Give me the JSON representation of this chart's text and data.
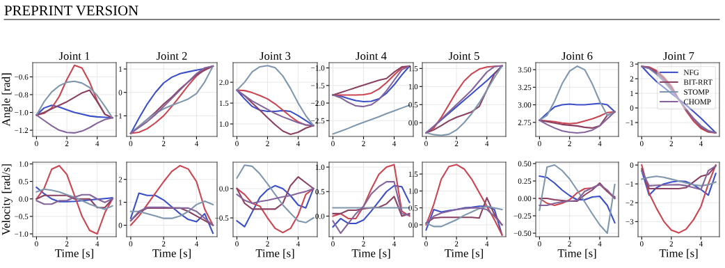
{
  "chart_data": [
    {
      "type": "line",
      "title": "Joint 1",
      "ylabel": "Angle [rad]",
      "annotations": [
        "PREPRINT VERSION"
      ],
      "grid": true,
      "x": [
        0,
        0.5,
        1,
        1.5,
        2,
        2.5,
        3,
        3.5,
        4,
        4.5,
        5
      ],
      "xlim": [
        -0.25,
        5.25
      ],
      "xticks": [
        0,
        2,
        4
      ],
      "ylim": [
        -1.27,
        -0.44
      ],
      "yticks": [
        -1.2,
        {
          "value": -1,
          "label": "−1.0"
        },
        -0.8,
        -0.6
      ],
      "series": [
        {
          "color": "#3a4fc9",
          "values": [
            -1.03,
            -0.95,
            -0.92,
            -0.94,
            -0.97,
            -1.0,
            -1.02,
            -1.04,
            -1.05,
            -1.055,
            -1.06
          ]
        },
        {
          "color": "#cc4450",
          "values": [
            -1.03,
            -1.01,
            -0.95,
            -0.82,
            -0.63,
            -0.47,
            -0.5,
            -0.66,
            -0.87,
            -1.02,
            -1.06
          ]
        },
        {
          "color": "#8a4060",
          "values": [
            -1.03,
            -1.0,
            -0.96,
            -0.92,
            -0.88,
            -0.83,
            -0.78,
            -0.75,
            -0.88,
            -1.02,
            -1.06
          ]
        },
        {
          "color": "#7f97ad",
          "values": [
            -1.03,
            -0.88,
            -0.77,
            -0.7,
            -0.66,
            -0.65,
            -0.67,
            -0.72,
            -0.81,
            -0.93,
            -1.06
          ]
        },
        {
          "color": "#84649a",
          "values": [
            -1.03,
            -1.09,
            -1.15,
            -1.2,
            -1.225,
            -1.23,
            -1.21,
            -1.17,
            -1.12,
            -1.08,
            -1.06
          ]
        }
      ]
    },
    {
      "type": "line",
      "title": "Joint 2",
      "grid": true,
      "x": [
        0,
        0.5,
        1,
        1.5,
        2,
        2.5,
        3,
        3.5,
        4,
        4.5,
        5
      ],
      "xlim": [
        -0.25,
        5.25
      ],
      "xticks": [
        0,
        2,
        4
      ],
      "ylim": [
        -1.88,
        1.27
      ],
      "yticks": [
        -1,
        0,
        1
      ],
      "series": [
        {
          "color": "#3a4fc9",
          "values": [
            -1.75,
            -1.1,
            -0.5,
            0.0,
            0.4,
            0.65,
            0.8,
            0.88,
            0.95,
            1.02,
            1.12
          ]
        },
        {
          "color": "#cc4450",
          "values": [
            -1.75,
            -1.7,
            -1.55,
            -1.3,
            -1.0,
            -0.6,
            -0.15,
            0.3,
            0.7,
            1.0,
            1.12
          ]
        },
        {
          "color": "#8a4060",
          "values": [
            -1.75,
            -1.45,
            -1.15,
            -0.85,
            -0.5,
            -0.2,
            0.15,
            0.45,
            0.75,
            0.95,
            1.12
          ]
        },
        {
          "color": "#7f97ad",
          "values": [
            -1.75,
            -1.45,
            -1.15,
            -0.9,
            -0.7,
            -0.55,
            -0.42,
            -0.28,
            -0.05,
            0.45,
            1.12
          ]
        },
        {
          "color": "#84649a",
          "values": [
            -1.75,
            -1.5,
            -1.25,
            -0.95,
            -0.6,
            -0.25,
            0.1,
            0.45,
            0.8,
            1.05,
            1.12
          ]
        }
      ]
    },
    {
      "type": "line",
      "title": "Joint 3",
      "grid": true,
      "x": [
        0,
        0.5,
        1,
        1.5,
        2,
        2.5,
        3,
        3.5,
        4,
        4.5,
        5
      ],
      "xlim": [
        -0.25,
        5.25
      ],
      "xticks": [
        0,
        2,
        4
      ],
      "ylim": [
        0.7,
        2.47
      ],
      "yticks": [
        {
          "value": 1,
          "label": "1.0"
        },
        1.5,
        {
          "value": 2,
          "label": "2.0"
        }
      ],
      "series": [
        {
          "color": "#3a4fc9",
          "values": [
            1.81,
            1.6,
            1.42,
            1.33,
            1.3,
            1.3,
            1.32,
            1.3,
            1.2,
            1.08,
            0.96
          ]
        },
        {
          "color": "#cc4450",
          "values": [
            1.81,
            1.8,
            1.75,
            1.68,
            1.6,
            1.48,
            1.33,
            1.18,
            1.05,
            0.97,
            0.96
          ]
        },
        {
          "color": "#8a4060",
          "values": [
            1.81,
            1.68,
            1.5,
            1.33,
            1.15,
            0.98,
            0.83,
            0.75,
            0.8,
            0.9,
            0.96
          ]
        },
        {
          "color": "#7f97ad",
          "values": [
            1.81,
            2.0,
            2.25,
            2.37,
            2.4,
            2.35,
            2.15,
            1.85,
            1.5,
            1.2,
            0.96
          ]
        },
        {
          "color": "#84649a",
          "values": [
            1.81,
            1.68,
            1.55,
            1.45,
            1.35,
            1.25,
            1.17,
            1.1,
            1.03,
            0.98,
            0.96
          ]
        }
      ]
    },
    {
      "type": "line",
      "title": "Joint 4",
      "grid": true,
      "x": [
        0,
        0.5,
        1,
        1.5,
        2,
        2.5,
        3,
        3.5,
        4,
        4.5,
        5
      ],
      "xlim": [
        -0.25,
        5.25
      ],
      "xticks": [
        0,
        2,
        4
      ],
      "ylim": [
        -2.95,
        -0.85
      ],
      "yticks": [
        -2.5,
        {
          "value": -2,
          "label": "−2.0"
        },
        -1.5,
        {
          "value": -1,
          "label": "−1.0"
        }
      ],
      "series": [
        {
          "color": "#3a4fc9",
          "values": [
            -1.77,
            -1.8,
            -1.87,
            -1.93,
            -1.96,
            -1.95,
            -1.88,
            -1.72,
            -1.48,
            -1.2,
            -0.95
          ]
        },
        {
          "color": "#cc4450",
          "values": [
            -1.77,
            -1.77,
            -1.77,
            -1.77,
            -1.76,
            -1.72,
            -1.6,
            -1.42,
            -1.2,
            -1.0,
            -0.95
          ]
        },
        {
          "color": "#8a4060",
          "values": [
            -1.77,
            -1.7,
            -1.63,
            -1.56,
            -1.49,
            -1.42,
            -1.35,
            -1.3,
            -1.12,
            -0.97,
            -0.95
          ]
        },
        {
          "color": "#7f97ad",
          "values": [
            -2.88,
            -2.8,
            -2.72,
            -2.63,
            -2.55,
            -2.47,
            -2.39,
            -2.3,
            -2.22,
            -2.14,
            -2.06
          ]
        },
        {
          "color": "#84649a",
          "values": [
            -1.77,
            -1.85,
            -1.98,
            -2.08,
            -2.1,
            -2.05,
            -1.9,
            -1.65,
            -1.35,
            -1.05,
            -0.95
          ]
        }
      ]
    },
    {
      "type": "line",
      "title": "Joint 5",
      "grid": true,
      "x": [
        0,
        0.5,
        1,
        1.5,
        2,
        2.5,
        3,
        3.5,
        4,
        4.5,
        5
      ],
      "xlim": [
        -0.25,
        5.25
      ],
      "xticks": [
        0,
        2,
        4
      ],
      "ylim": [
        -0.38,
        1.66
      ],
      "yticks": [
        {
          "value": 0,
          "label": "0.0"
        },
        0.5,
        {
          "value": 1,
          "label": "1.0"
        },
        1.5
      ],
      "series": [
        {
          "color": "#3a4fc9",
          "values": [
            -0.28,
            -0.1,
            0.08,
            0.26,
            0.44,
            0.62,
            0.8,
            0.98,
            1.16,
            1.36,
            1.57
          ]
        },
        {
          "color": "#cc4450",
          "values": [
            -0.28,
            -0.15,
            0.15,
            0.5,
            0.85,
            1.15,
            1.35,
            1.48,
            1.54,
            1.56,
            1.57
          ]
        },
        {
          "color": "#8a4060",
          "values": [
            -0.28,
            -0.2,
            -0.08,
            0.05,
            0.15,
            0.22,
            0.3,
            0.45,
            0.9,
            1.35,
            1.57
          ]
        },
        {
          "color": "#7f97ad",
          "values": [
            -0.28,
            -0.33,
            -0.35,
            -0.32,
            -0.2,
            0.0,
            0.25,
            0.55,
            0.9,
            1.25,
            1.57
          ]
        },
        {
          "color": "#84649a",
          "values": [
            -0.28,
            -0.1,
            0.1,
            0.3,
            0.5,
            0.7,
            0.9,
            1.15,
            1.4,
            1.55,
            1.57
          ]
        }
      ]
    },
    {
      "type": "line",
      "title": "Joint 6",
      "grid": true,
      "x": [
        0,
        0.5,
        1,
        1.5,
        2,
        2.5,
        3,
        3.5,
        4,
        4.5,
        5
      ],
      "xlim": [
        -0.25,
        5.25
      ],
      "xticks": [
        0,
        2,
        4
      ],
      "ylim": [
        2.55,
        3.6
      ],
      "yticks": [
        {
          "value": 2.75,
          "label": "2.75"
        },
        {
          "value": 3.0,
          "label": "3.00"
        },
        {
          "value": 3.25,
          "label": "3.25"
        },
        {
          "value": 3.5,
          "label": "3.50"
        }
      ],
      "series": [
        {
          "color": "#3a4fc9",
          "values": [
            2.78,
            2.88,
            2.97,
            3.0,
            3.01,
            3.0,
            3.0,
            3.01,
            3.02,
            3.0,
            2.9
          ]
        },
        {
          "color": "#cc4450",
          "values": [
            2.78,
            2.77,
            2.76,
            2.74,
            2.73,
            2.74,
            2.77,
            2.8,
            2.84,
            2.89,
            2.9
          ]
        },
        {
          "color": "#8a4060",
          "values": [
            2.78,
            2.76,
            2.74,
            2.72,
            2.71,
            2.7,
            2.68,
            2.67,
            2.7,
            2.85,
            2.9
          ]
        },
        {
          "color": "#7f97ad",
          "values": [
            2.78,
            2.85,
            3.05,
            3.3,
            3.48,
            3.55,
            3.5,
            3.3,
            3.05,
            2.85,
            2.9
          ]
        },
        {
          "color": "#84649a",
          "values": [
            2.78,
            2.72,
            2.67,
            2.63,
            2.61,
            2.6,
            2.61,
            2.64,
            2.7,
            2.8,
            2.9
          ]
        }
      ]
    },
    {
      "type": "line",
      "title": "Joint 7",
      "grid": true,
      "legend": "top right",
      "x": [
        0,
        0.5,
        1,
        1.5,
        2,
        2.5,
        3,
        3.5,
        4,
        4.5,
        5
      ],
      "xlim": [
        -0.25,
        5.25
      ],
      "xticks": [
        0,
        2,
        4
      ],
      "ylim": [
        -1.95,
        3.1
      ],
      "yticks": [
        -1,
        0,
        1,
        2,
        3
      ],
      "series": [
        {
          "name": "NFG",
          "color": "#3a4fc9",
          "values": [
            2.85,
            2.3,
            1.8,
            1.4,
            1.0,
            0.6,
            0.2,
            -0.25,
            -0.7,
            -1.2,
            -1.7
          ]
        },
        {
          "color": "#cc4450",
          "values": [
            2.85,
            2.8,
            2.55,
            2.1,
            1.5,
            0.6,
            -0.2,
            -0.9,
            -1.4,
            -1.65,
            -1.7
          ]
        },
        {
          "name": "BIT-RRT",
          "color": "#8a4060",
          "values": [
            2.85,
            2.75,
            2.45,
            2.0,
            1.35,
            0.6,
            -0.1,
            -0.75,
            -1.3,
            -1.6,
            -1.7
          ]
        },
        {
          "name": "STOMP",
          "color": "#7f97ad",
          "values": [
            2.85,
            2.7,
            2.3,
            1.8,
            1.2,
            0.55,
            -0.1,
            -0.7,
            -1.2,
            -1.55,
            -1.7
          ]
        },
        {
          "name": "CHOMP",
          "color": "#84649a",
          "values": [
            2.85,
            2.72,
            2.38,
            1.9,
            1.3,
            0.6,
            -0.1,
            -0.75,
            -1.25,
            -1.58,
            -1.7
          ]
        }
      ]
    },
    {
      "type": "line",
      "xlabel": "Time [s]",
      "ylabel": "Velocity [rad/s]",
      "grid": true,
      "x": [
        0,
        0.5,
        1,
        1.5,
        2,
        2.5,
        3,
        3.5,
        4,
        4.5,
        5
      ],
      "xlim": [
        -0.25,
        5.25
      ],
      "xticks": [
        0,
        2,
        4
      ],
      "ylim": [
        -1.08,
        1.05
      ],
      "yticks": [
        {
          "value": -1,
          "label": "−1.0"
        },
        -0.5,
        {
          "value": 0,
          "label": "0.0"
        },
        0.5,
        {
          "value": 1,
          "label": "1.0"
        }
      ],
      "series": [
        {
          "color": "#3a4fc9",
          "values": [
            0.33,
            0.15,
            0.0,
            -0.08,
            -0.08,
            -0.07,
            -0.05,
            -0.03,
            -0.01,
            0.01,
            0.03
          ]
        },
        {
          "color": "#cc4450",
          "values": [
            0.0,
            0.3,
            0.85,
            0.95,
            0.7,
            0.1,
            -0.5,
            -0.9,
            -1.0,
            -0.4,
            0.0
          ]
        },
        {
          "color": "#8a4060",
          "values": [
            0.0,
            0.1,
            0.1,
            0.1,
            0.1,
            0.0,
            0.0,
            0.0,
            -0.25,
            -0.25,
            0.0
          ]
        },
        {
          "color": "#7f97ad",
          "values": [
            0.2,
            0.28,
            0.25,
            0.2,
            0.12,
            0.05,
            -0.05,
            -0.15,
            -0.23,
            -0.3,
            -0.2
          ]
        },
        {
          "color": "#84649a",
          "values": [
            -0.05,
            -0.15,
            -0.15,
            -0.05,
            -0.05,
            0.05,
            0.12,
            0.12,
            0.0,
            -0.1,
            0.0
          ]
        }
      ]
    },
    {
      "type": "line",
      "xlabel": "Time [s]",
      "grid": true,
      "x": [
        0,
        0.5,
        1,
        1.5,
        2,
        2.5,
        3,
        3.5,
        4,
        4.5,
        5
      ],
      "xlim": [
        -0.25,
        5.25
      ],
      "xticks": [
        0,
        2,
        4
      ],
      "ylim": [
        -0.5,
        2.75
      ],
      "yticks": [
        0,
        1,
        2
      ],
      "series": [
        {
          "color": "#3a4fc9",
          "values": [
            0.3,
            1.4,
            1.3,
            1.3,
            1.1,
            0.8,
            0.5,
            0.25,
            0.15,
            0.5,
            -0.35
          ]
        },
        {
          "color": "#cc4450",
          "values": [
            0.0,
            0.4,
            0.9,
            1.4,
            1.9,
            2.35,
            2.6,
            2.45,
            1.9,
            0.7,
            0.0
          ]
        },
        {
          "color": "#8a4060",
          "values": [
            0.2,
            0.55,
            0.75,
            0.75,
            0.75,
            0.75,
            0.75,
            0.6,
            0.4,
            0.2,
            0.0
          ]
        },
        {
          "color": "#7f97ad",
          "values": [
            0.6,
            0.6,
            0.5,
            0.4,
            0.3,
            0.3,
            0.4,
            0.6,
            0.9,
            1.05,
            0.9
          ]
        },
        {
          "color": "#84649a",
          "values": [
            0.2,
            0.6,
            0.78,
            0.78,
            0.78,
            0.76,
            0.75,
            0.75,
            0.6,
            0.3,
            0.0
          ]
        }
      ]
    },
    {
      "type": "line",
      "xlabel": "Time [s]",
      "grid": true,
      "x": [
        0,
        0.5,
        1,
        1.5,
        2,
        2.5,
        3,
        3.5,
        4,
        4.5,
        5
      ],
      "xlim": [
        -0.25,
        5.25
      ],
      "xticks": [
        0,
        2,
        4
      ],
      "ylim": [
        -0.82,
        0.45
      ],
      "yticks": [
        -0.5,
        {
          "value": 0,
          "label": "0.0"
        }
      ],
      "series": [
        {
          "color": "#3a4fc9",
          "values": [
            -0.55,
            -0.65,
            -0.4,
            -0.15,
            -0.02,
            0.05,
            0.0,
            -0.12,
            -0.28,
            -0.33,
            0.0
          ]
        },
        {
          "color": "#cc4450",
          "values": [
            0.0,
            -0.1,
            -0.25,
            -0.3,
            -0.5,
            -0.68,
            -0.75,
            -0.68,
            -0.45,
            -0.1,
            0.0
          ]
        },
        {
          "color": "#8a4060",
          "values": [
            0.0,
            -0.25,
            -0.35,
            -0.35,
            -0.35,
            -0.35,
            -0.25,
            0.05,
            0.2,
            0.1,
            0.0
          ]
        },
        {
          "color": "#7f97ad",
          "values": [
            0.18,
            0.4,
            0.38,
            0.25,
            0.08,
            -0.1,
            -0.28,
            -0.42,
            -0.55,
            -0.58,
            -0.5
          ]
        },
        {
          "color": "#84649a",
          "values": [
            -0.1,
            -0.2,
            -0.25,
            -0.22,
            -0.2,
            -0.17,
            -0.14,
            -0.12,
            -0.08,
            -0.05,
            0.0
          ]
        }
      ]
    },
    {
      "type": "line",
      "xlabel": "Time [s]",
      "grid": true,
      "x": [
        0,
        0.5,
        1,
        1.5,
        2,
        2.5,
        3,
        3.5,
        4,
        4.5,
        5
      ],
      "xlim": [
        -0.25,
        5.25
      ],
      "xticks": [
        0,
        2,
        4
      ],
      "ylim": [
        -0.42,
        1.1
      ],
      "yticks": [
        {
          "value": 0,
          "label": "0.0"
        },
        0.5,
        {
          "value": 1,
          "label": "1.0"
        }
      ],
      "series": [
        {
          "color": "#3a4fc9",
          "values": [
            -0.22,
            -0.05,
            -0.15,
            -0.15,
            -0.08,
            0.1,
            0.3,
            0.5,
            0.62,
            0.6,
            0.28
          ]
        },
        {
          "color": "#cc4450",
          "values": [
            0.0,
            0.05,
            -0.05,
            -0.05,
            0.2,
            0.55,
            0.85,
            1.0,
            1.05,
            0.1,
            0.0
          ]
        },
        {
          "color": "#8a4060",
          "values": [
            0.05,
            0.05,
            0.12,
            0.12,
            0.15,
            0.17,
            0.18,
            0.25,
            0.4,
            0.0,
            0.05
          ]
        },
        {
          "color": "#7f97ad",
          "values": [
            0.17,
            0.17,
            0.17,
            0.17,
            0.17,
            0.17,
            0.17,
            0.17,
            0.17,
            0.17,
            0.17
          ]
        },
        {
          "color": "#84649a",
          "values": [
            -0.1,
            -0.35,
            -0.15,
            0.05,
            0.2,
            0.45,
            0.6,
            0.7,
            0.7,
            0.05,
            0.02
          ]
        }
      ]
    },
    {
      "type": "line",
      "xlabel": "Time [s]",
      "grid": true,
      "x": [
        0,
        0.5,
        1,
        1.5,
        2,
        2.5,
        3,
        3.5,
        4,
        4.5,
        5
      ],
      "xlim": [
        -0.25,
        5.25
      ],
      "xticks": [
        0,
        2,
        4
      ],
      "ylim": [
        -0.35,
        1.85
      ],
      "yticks": [
        {
          "value": 0,
          "label": "0.0"
        },
        0.5,
        {
          "value": 1,
          "label": "1.0"
        },
        1.5
      ],
      "series": [
        {
          "color": "#3a4fc9",
          "values": [
            -0.15,
            0.45,
            0.38,
            0.42,
            0.45,
            0.5,
            0.52,
            0.55,
            0.55,
            0.45,
            -0.3
          ]
        },
        {
          "color": "#cc4450",
          "values": [
            0.0,
            0.6,
            1.35,
            1.72,
            1.78,
            1.65,
            1.35,
            0.95,
            0.55,
            0.15,
            -0.3
          ]
        },
        {
          "color": "#8a4060",
          "values": [
            0.05,
            0.2,
            0.22,
            0.22,
            0.22,
            0.22,
            0.22,
            0.2,
            0.8,
            0.3,
            0.0
          ]
        },
        {
          "color": "#7f97ad",
          "values": [
            0.05,
            -0.05,
            -0.05,
            0.05,
            0.15,
            0.28,
            0.38,
            0.48,
            0.55,
            0.5,
            0.45
          ]
        },
        {
          "color": "#84649a",
          "values": [
            0.05,
            0.25,
            0.35,
            0.4,
            0.45,
            0.48,
            0.5,
            0.5,
            0.45,
            0.25,
            0.0
          ]
        }
      ]
    },
    {
      "type": "line",
      "xlabel": "Time [s]",
      "grid": true,
      "x": [
        0,
        0.5,
        1,
        1.5,
        2,
        2.5,
        3,
        3.5,
        4,
        4.5,
        5
      ],
      "xlim": [
        -0.25,
        5.25
      ],
      "xticks": [
        0,
        2,
        4
      ],
      "ylim": [
        -0.55,
        0.52
      ],
      "yticks": [
        {
          "value": -0.5,
          "label": "−0.50"
        },
        {
          "value": -0.25,
          "label": "−0.25"
        },
        {
          "value": 0.0,
          "label": "0.00"
        },
        {
          "value": 0.25,
          "label": "0.25"
        },
        {
          "value": 0.5,
          "label": "0.50"
        }
      ],
      "series": [
        {
          "color": "#3a4fc9",
          "values": [
            0.32,
            0.3,
            0.22,
            0.12,
            0.04,
            -0.02,
            -0.02,
            0.02,
            0.03,
            -0.1,
            -0.35
          ]
        },
        {
          "color": "#cc4450",
          "values": [
            0.0,
            -0.07,
            -0.1,
            -0.07,
            -0.02,
            0.08,
            0.14,
            0.15,
            0.2,
            0.1,
            0.0
          ]
        },
        {
          "color": "#8a4060",
          "values": [
            0.0,
            0.0,
            -0.02,
            -0.03,
            -0.04,
            -0.04,
            0.05,
            0.12,
            0.22,
            0.1,
            0.02
          ]
        },
        {
          "color": "#7f97ad",
          "values": [
            -0.17,
            0.45,
            0.48,
            0.4,
            0.28,
            0.12,
            -0.05,
            -0.22,
            -0.38,
            -0.5,
            0.2
          ]
        },
        {
          "color": "#84649a",
          "values": [
            -0.1,
            -0.1,
            -0.07,
            -0.05,
            -0.04,
            -0.03,
            0.1,
            0.15,
            0.2,
            0.12,
            0.0
          ]
        }
      ]
    },
    {
      "type": "line",
      "xlabel": "Time [s]",
      "grid": true,
      "x": [
        0,
        0.5,
        1,
        1.5,
        2,
        2.5,
        3,
        3.5,
        4,
        4.5,
        5
      ],
      "xlim": [
        -0.25,
        5.25
      ],
      "xticks": [
        0,
        2,
        4
      ],
      "ylim": [
        -3.8,
        0.15
      ],
      "yticks": [
        -3,
        -2,
        -1,
        0
      ],
      "series": [
        {
          "color": "#3a4fc9",
          "values": [
            -0.3,
            -1.6,
            -1.2,
            -1.0,
            -0.9,
            -0.85,
            -0.88,
            -1.05,
            -1.3,
            -1.6,
            -0.45
          ]
        },
        {
          "color": "#cc4450",
          "values": [
            0.0,
            -1.5,
            -2.3,
            -3.0,
            -3.45,
            -3.6,
            -3.4,
            -2.9,
            -2.2,
            -1.0,
            0.0
          ]
        },
        {
          "color": "#8a4060",
          "values": [
            -0.2,
            -1.25,
            -1.25,
            -1.25,
            -1.25,
            -1.25,
            -1.2,
            -0.9,
            -0.6,
            -0.5,
            -0.05
          ]
        },
        {
          "color": "#7f97ad",
          "values": [
            -0.75,
            -0.65,
            -0.6,
            -0.65,
            -0.75,
            -0.85,
            -0.95,
            -1.05,
            -1.1,
            -1.05,
            -0.9
          ]
        },
        {
          "color": "#84649a",
          "values": [
            -0.3,
            -1.1,
            -1.08,
            -1.06,
            -1.05,
            -1.04,
            -1.1,
            -1.2,
            -1.3,
            -0.3,
            -0.05
          ]
        }
      ]
    }
  ]
}
